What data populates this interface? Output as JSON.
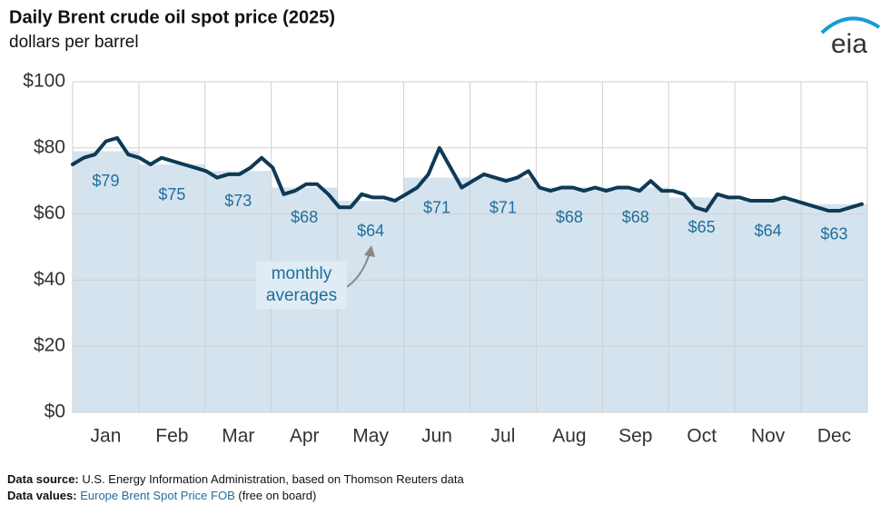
{
  "chart_data": {
    "type": "bar",
    "title": "Daily Brent crude oil spot price (2025)",
    "subtitle": "dollars per barrel",
    "categories": [
      "Jan",
      "Feb",
      "Mar",
      "Apr",
      "May",
      "Jun",
      "Jul",
      "Aug",
      "Sep",
      "Oct",
      "Nov",
      "Dec"
    ],
    "values": [
      79,
      75,
      73,
      68,
      64,
      71,
      71,
      68,
      68,
      65,
      64,
      63
    ],
    "value_labels": [
      "$79",
      "$75",
      "$73",
      "$68",
      "$64",
      "$71",
      "$71",
      "$68",
      "$68",
      "$65",
      "$64",
      "$63"
    ],
    "color": "#d5e3ee",
    "label_color": "#1f6e9c",
    "line": {
      "color": "#0e3a56",
      "values": [
        75,
        77,
        78,
        82,
        83,
        78,
        77,
        75,
        77,
        76,
        75,
        74,
        73,
        71,
        72,
        72,
        74,
        77,
        74,
        66,
        67,
        69,
        69,
        66,
        62,
        62,
        66,
        65,
        65,
        64,
        66,
        68,
        72,
        80,
        74,
        68,
        70,
        72,
        71,
        70,
        71,
        73,
        68,
        67,
        68,
        68,
        67,
        68,
        67,
        68,
        68,
        67,
        70,
        67,
        67,
        66,
        62,
        61,
        66,
        65,
        65,
        64,
        64,
        64,
        65,
        64,
        63,
        62,
        61,
        61,
        62,
        63
      ]
    },
    "annotation": "monthly averages",
    "ylim": [
      0,
      100
    ],
    "yticks": [
      {
        "value": 0,
        "label": "$0"
      },
      {
        "value": 20,
        "label": "$20"
      },
      {
        "value": 40,
        "label": "$40"
      },
      {
        "value": 60,
        "label": "$60"
      },
      {
        "value": 80,
        "label": "$80"
      },
      {
        "value": 100,
        "label": "$100"
      }
    ],
    "grid": true,
    "logo": "eia",
    "source_label": "Data source:",
    "source": "U.S. Energy Information Administration, based on Thomson Reuters data",
    "values_label": "Data values:",
    "values_link": "Europe Brent Spot Price FOB",
    "values_note": "(free on board)"
  }
}
